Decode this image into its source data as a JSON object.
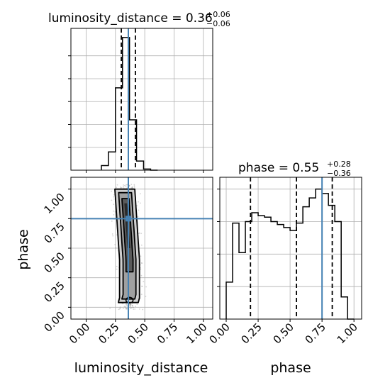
{
  "chart_data": [
    {
      "type": "histogram",
      "panel": "luminosity_distance marginal",
      "title": {
        "prefix": "luminosity_distance = 0.36",
        "sup": "+0.06",
        "sub": "−0.06"
      },
      "xlim": [
        -0.13,
        1.08
      ],
      "grid": true,
      "truth": 0.36,
      "quantiles": [
        0.3,
        0.36,
        0.42
      ],
      "bin_edges": [
        0.13,
        0.19,
        0.25,
        0.31,
        0.37,
        0.43,
        0.49,
        0.55,
        0.61
      ],
      "values": [
        0.02,
        0.08,
        0.36,
        0.58,
        0.22,
        0.04,
        0.005,
        0
      ],
      "ylim": [
        0,
        0.62
      ],
      "y_tick_values": [
        0.1,
        0.2,
        0.3,
        0.4,
        0.5
      ],
      "x_tick_values": [
        0,
        0.25,
        0.5,
        0.75,
        1.0
      ]
    },
    {
      "type": "histogram",
      "panel": "phase marginal",
      "title": {
        "prefix": "phase = 0.55",
        "sup": "+0.28",
        "sub": "−0.36"
      },
      "xlim": [
        -0.05,
        1.06
      ],
      "grid": true,
      "truth": 0.75,
      "quantiles": [
        0.19,
        0.55,
        0.83
      ],
      "bin_edges": [
        0.0,
        0.05,
        0.1,
        0.15,
        0.2,
        0.25,
        0.3,
        0.35,
        0.4,
        0.45,
        0.5,
        0.55,
        0.6,
        0.65,
        0.7,
        0.75,
        0.8,
        0.85,
        0.9,
        0.95,
        1.0
      ],
      "values": [
        25,
        65,
        45,
        66,
        72,
        70,
        69,
        66,
        64,
        62,
        60,
        65,
        76,
        82,
        88,
        85,
        77,
        66,
        15,
        0
      ],
      "ylim": [
        0,
        96
      ],
      "y_tick_values": [
        22,
        44,
        66,
        88
      ],
      "x_tick_values": [
        0,
        0.25,
        0.5,
        0.75,
        1.0
      ],
      "x_tick_labels": [
        "0.00",
        "0.25",
        "0.50",
        "0.75",
        "1.00"
      ],
      "xlabel": "phase"
    },
    {
      "type": "contour",
      "panel": "luminosity_distance vs phase",
      "xlabel": "luminosity_distance",
      "ylabel": "phase",
      "xlim": [
        -0.13,
        1.08
      ],
      "ylim": [
        -0.1,
        1.1
      ],
      "grid": true,
      "truth": {
        "x": 0.36,
        "y": 0.75
      },
      "x_tick_values": [
        0,
        0.25,
        0.5,
        0.75,
        1.0
      ],
      "x_tick_labels": [
        "0.00",
        "0.25",
        "0.50",
        "0.75",
        "1.00"
      ],
      "y_tick_values": [
        0,
        0.25,
        0.5,
        0.75,
        1.0
      ],
      "y_tick_labels": [
        "0.00",
        "0.25",
        "0.50",
        "0.75",
        "1.00"
      ],
      "density_ridge": [
        {
          "phase": 1.0,
          "luminosity_distance": 0.33
        },
        {
          "phase": 0.85,
          "luminosity_distance": 0.34
        },
        {
          "phase": 0.7,
          "luminosity_distance": 0.35
        },
        {
          "phase": 0.55,
          "luminosity_distance": 0.36
        },
        {
          "phase": 0.4,
          "luminosity_distance": 0.37
        },
        {
          "phase": 0.25,
          "luminosity_distance": 0.37
        },
        {
          "phase": 0.08,
          "luminosity_distance": 0.37
        }
      ]
    }
  ],
  "colors": {
    "truth": "#4682b4",
    "line": "#000000",
    "grid": "#b0b0b0",
    "fill_dark": "#5a5a5a",
    "fill_mid": "#a0a0a0",
    "fill_light": "#cfcfcf",
    "samples": "#808080"
  }
}
